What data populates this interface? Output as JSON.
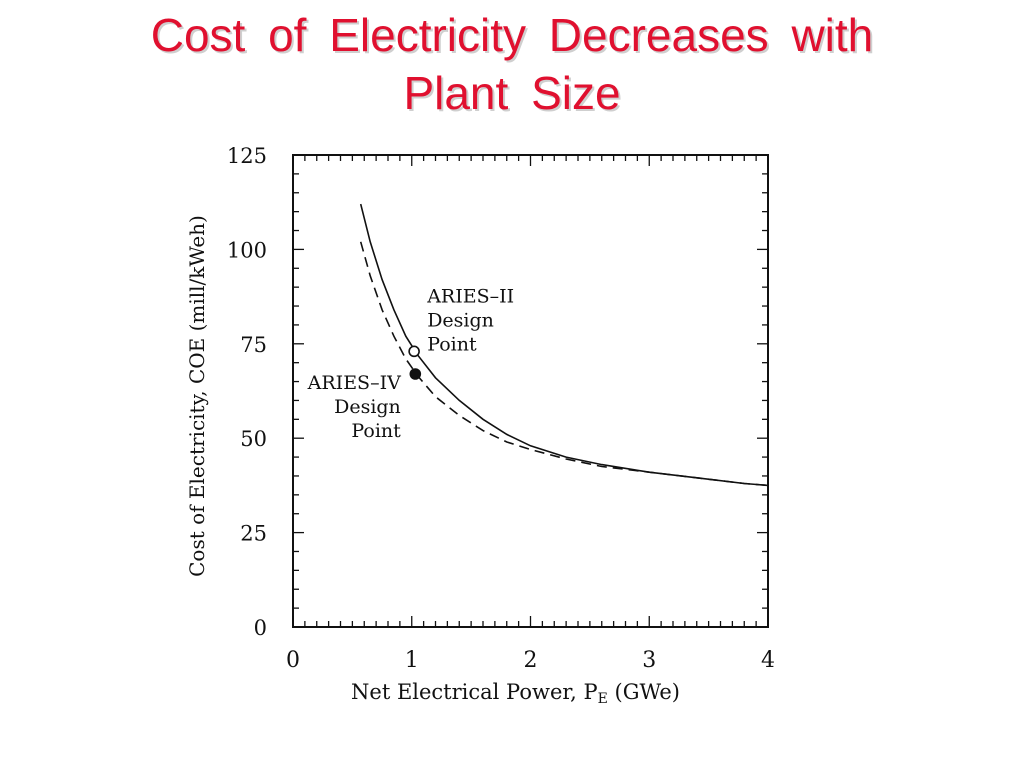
{
  "slide": {
    "title_line1": "Cost  of  Electricity  Decreases  with",
    "title_line2": "Plant  Size",
    "title_color": "#e0102f"
  },
  "chart_data": {
    "type": "line",
    "title": "",
    "xlabel": "Net Electrical Power, P",
    "xlabel_sub": "E",
    "xlabel_unit": "(GWe)",
    "ylabel": "Cost of Electricity, COE (mill/kWeh)",
    "xlim": [
      0,
      4
    ],
    "ylim": [
      0,
      125
    ],
    "x_ticks": [
      0,
      1,
      2,
      3,
      4
    ],
    "x_tick_labels": [
      "0",
      "1",
      "2",
      "3",
      "4"
    ],
    "y_ticks": [
      0,
      25,
      50,
      75,
      100,
      125
    ],
    "y_tick_labels": [
      "0",
      "25",
      "50",
      "75",
      "100",
      "125"
    ],
    "grid": false,
    "legend": "none",
    "series": [
      {
        "style": "solid",
        "x": [
          0.57,
          0.65,
          0.75,
          0.85,
          0.95,
          1.05,
          1.2,
          1.4,
          1.6,
          1.8,
          2.0,
          2.3,
          2.6,
          3.0,
          3.4,
          3.8,
          4.0
        ],
        "y": [
          112,
          102,
          92,
          84,
          77,
          72,
          66,
          60,
          55,
          51,
          48,
          45,
          43,
          41,
          39.5,
          38,
          37.5
        ]
      },
      {
        "style": "dashed",
        "x": [
          0.57,
          0.65,
          0.75,
          0.85,
          0.95,
          1.05,
          1.2,
          1.4,
          1.6,
          1.8,
          2.0,
          2.3,
          2.6,
          3.0,
          3.4,
          3.8,
          4.0
        ],
        "y": [
          102,
          93,
          84,
          77,
          71,
          66.5,
          61,
          56,
          52,
          49,
          47,
          44.5,
          42.5,
          41,
          39.5,
          38,
          37.5
        ]
      }
    ],
    "points": [
      {
        "x": 1.02,
        "y": 73,
        "style": "open"
      },
      {
        "x": 1.03,
        "y": 67,
        "style": "filled"
      }
    ],
    "annotations": [
      {
        "lines": [
          "ARIES–II",
          "Design",
          "Point"
        ],
        "x": 1.13,
        "y": 86,
        "align": "left"
      },
      {
        "lines": [
          "ARIES–IV",
          "Design",
          "Point"
        ],
        "x": 0.95,
        "y": 63,
        "align": "right"
      }
    ]
  }
}
